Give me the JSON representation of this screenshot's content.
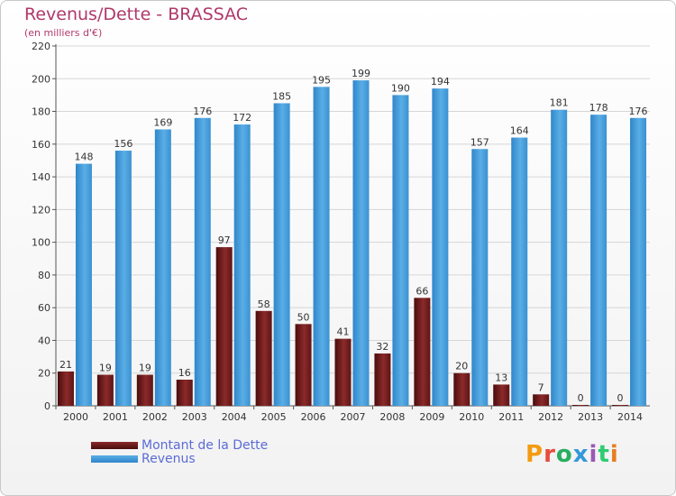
{
  "header": {
    "title": "Revenus/Dette - BRASSAC",
    "subtitle": "(en milliers d'€)"
  },
  "legend": {
    "items": [
      {
        "label": "Montant de la Dette",
        "color": "#7a1f1f"
      },
      {
        "label": "Revenus",
        "color": "#4aa3e0"
      }
    ]
  },
  "logo": {
    "text": "Proxiti",
    "colors": [
      "#f39c12",
      "#e74c3c",
      "#27ae60",
      "#3498db",
      "#9b59b6",
      "#2ecc71",
      "#e67e22"
    ]
  },
  "chart_data": {
    "type": "bar",
    "title": "Revenus/Dette - BRASSAC",
    "subtitle": "(en milliers d'€)",
    "categories": [
      "2000",
      "2001",
      "2002",
      "2003",
      "2004",
      "2005",
      "2006",
      "2007",
      "2008",
      "2009",
      "2010",
      "2011",
      "2012",
      "2013",
      "2014"
    ],
    "series": [
      {
        "name": "Montant de la Dette",
        "color": "#7a1f1f",
        "values": [
          21,
          19,
          19,
          16,
          97,
          58,
          50,
          41,
          32,
          66,
          20,
          13,
          7,
          0,
          0
        ]
      },
      {
        "name": "Revenus",
        "color": "#4aa3e0",
        "values": [
          148,
          156,
          169,
          176,
          172,
          185,
          195,
          199,
          190,
          194,
          157,
          164,
          181,
          178,
          176
        ]
      }
    ],
    "ylim": [
      0,
      220
    ],
    "yticks": [
      0,
      20,
      40,
      60,
      80,
      100,
      120,
      140,
      160,
      180,
      200,
      220
    ],
    "grid": true,
    "legend_position": "bottom-left"
  }
}
